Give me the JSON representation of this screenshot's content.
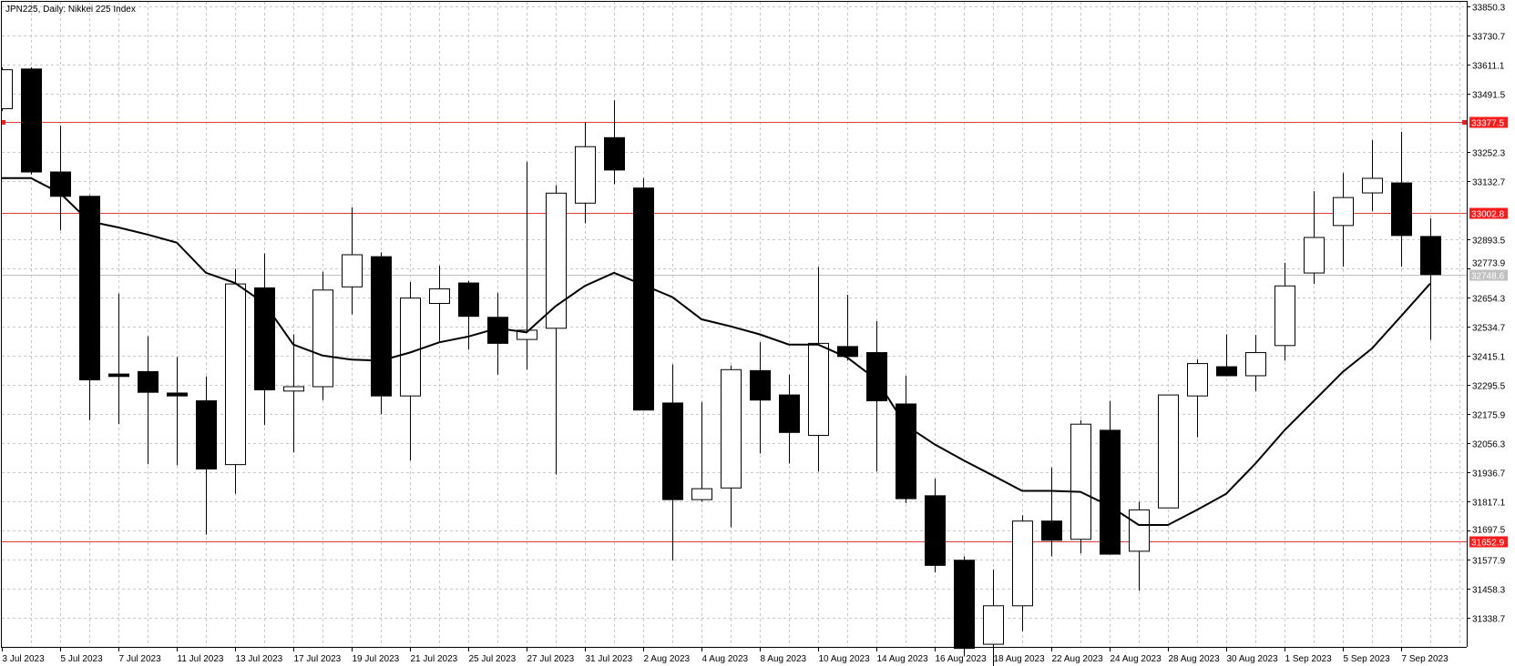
{
  "header": {
    "title": "JPN225, Daily:  Nikkei 225 Index"
  },
  "colors": {
    "bull_body": "#ffffff",
    "bear_body": "#000000",
    "outline": "#000000",
    "level_line": "#e03c3c",
    "level_label_bg": "#ff1a1a",
    "bid_line": "#c0c0c0",
    "grid": "#c8c8c8"
  },
  "chart_data": {
    "type": "candlestick",
    "title": "JPN225, Daily:  Nikkei 225 Index",
    "ylim": [
      31219.1,
      33879
    ],
    "grid": true,
    "y_ticks": [
      "33850.3",
      "33730.7",
      "33611.1",
      "33491.5",
      "33252.3",
      "33132.7",
      "32893.5",
      "32773.9",
      "32654.3",
      "32534.7",
      "32415.1",
      "32295.5",
      "32175.9",
      "32056.3",
      "31936.7",
      "31817.1",
      "31697.5",
      "31577.9",
      "31458.3",
      "31338.7"
    ],
    "x_tick_labels": [
      "3 Jul 2023",
      "5 Jul 2023",
      "7 Jul 2023",
      "11 Jul 2023",
      "13 Jul 2023",
      "17 Jul 2023",
      "19 Jul 2023",
      "21 Jul 2023",
      "25 Jul 2023",
      "27 Jul 2023",
      "31 Jul 2023",
      "2 Aug 2023",
      "4 Aug 2023",
      "8 Aug 2023",
      "10 Aug 2023",
      "14 Aug 2023",
      "16 Aug 2023",
      "18 Aug 2023",
      "22 Aug 2023",
      "24 Aug 2023",
      "28 Aug 2023",
      "30 Aug 2023",
      "1 Sep 2023",
      "5 Sep 2023",
      "7 Sep 2023"
    ],
    "dates": [
      "3 Jul",
      "4 Jul",
      "5 Jul",
      "6 Jul",
      "7 Jul",
      "10 Jul",
      "11 Jul",
      "12 Jul",
      "13 Jul",
      "14 Jul",
      "17 Jul",
      "18 Jul",
      "19 Jul",
      "20 Jul",
      "21 Jul",
      "24 Jul",
      "25 Jul",
      "26 Jul",
      "27 Jul",
      "28 Jul",
      "31 Jul",
      "1 Aug",
      "2 Aug",
      "3 Aug",
      "4 Aug",
      "7 Aug",
      "8 Aug",
      "9 Aug",
      "10 Aug",
      "11 Aug",
      "14 Aug",
      "15 Aug",
      "16 Aug",
      "17 Aug",
      "18 Aug",
      "21 Aug",
      "22 Aug",
      "23 Aug",
      "24 Aug",
      "25 Aug",
      "28 Aug",
      "29 Aug",
      "30 Aug",
      "31 Aug",
      "1 Sep",
      "4 Sep",
      "5 Sep",
      "6 Sep",
      "7 Sep",
      "8 Sep"
    ],
    "ohlc": [
      [
        33430,
        33600,
        33420,
        33590
      ],
      [
        33593,
        33600,
        33160,
        33170
      ],
      [
        33170,
        33360,
        32930,
        33070
      ],
      [
        33070,
        33075,
        32150,
        32316
      ],
      [
        32340,
        32670,
        32135,
        32330
      ],
      [
        32350,
        32495,
        31970,
        32265
      ],
      [
        32262,
        32410,
        31965,
        32250
      ],
      [
        32230,
        32330,
        31680,
        31950
      ],
      [
        31968,
        32772,
        31848,
        32710
      ],
      [
        32694,
        32835,
        32130,
        32275
      ],
      [
        32270,
        32503,
        32018,
        32288
      ],
      [
        32288,
        32760,
        32233,
        32685
      ],
      [
        32698,
        33025,
        32585,
        32830
      ],
      [
        32822,
        32840,
        32175,
        32250
      ],
      [
        32250,
        32718,
        31985,
        32652
      ],
      [
        32630,
        32785,
        32474,
        32690
      ],
      [
        32714,
        32722,
        32440,
        32577
      ],
      [
        32573,
        32673,
        32337,
        32466
      ],
      [
        32482,
        33212,
        32358,
        32520
      ],
      [
        32528,
        33116,
        31927,
        33083
      ],
      [
        33042,
        33373,
        32959,
        33274
      ],
      [
        33311,
        33465,
        33120,
        33178
      ],
      [
        33104,
        33145,
        32192,
        32192
      ],
      [
        32221,
        32379,
        31574,
        31824
      ],
      [
        31824,
        32225,
        31815,
        31869
      ],
      [
        31872,
        32375,
        31711,
        32358
      ],
      [
        32354,
        32470,
        32014,
        32233
      ],
      [
        32254,
        32337,
        31972,
        32100
      ],
      [
        32088,
        32780,
        31940,
        32466
      ],
      [
        32453,
        32665,
        32395,
        32412
      ],
      [
        32428,
        32557,
        31940,
        32230
      ],
      [
        32217,
        32333,
        31810,
        31828
      ],
      [
        31840,
        31910,
        31525,
        31554
      ],
      [
        31575,
        31591,
        31180,
        31213
      ],
      [
        31230,
        31537,
        31123,
        31388
      ],
      [
        31388,
        31760,
        31284,
        31736
      ],
      [
        31736,
        31956,
        31591,
        31657
      ],
      [
        31661,
        32150,
        31603,
        32134
      ],
      [
        32109,
        32229,
        31600,
        31600
      ],
      [
        31612,
        31815,
        31450,
        31782
      ],
      [
        31790,
        32254,
        31790,
        32254
      ],
      [
        32250,
        32400,
        32080,
        32383
      ],
      [
        32370,
        32503,
        32330,
        32333
      ],
      [
        32333,
        32500,
        32270,
        32428
      ],
      [
        32457,
        32797,
        32395,
        32702
      ],
      [
        32755,
        33091,
        32710,
        32901
      ],
      [
        32950,
        33166,
        32781,
        33065
      ],
      [
        33084,
        33301,
        33009,
        33144
      ],
      [
        33125,
        33335,
        32781,
        32909
      ],
      [
        32905,
        32980,
        32480,
        32748.6
      ]
    ],
    "moving_average": [
      33145,
      33145,
      33083,
      32967,
      32942,
      32913,
      32880,
      32756,
      32714,
      32631,
      32461,
      32416,
      32399,
      32395,
      32428,
      32470,
      32494,
      32528,
      32511,
      32619,
      32702,
      32756,
      32706,
      32656,
      32565,
      32536,
      32503,
      32461,
      32461,
      32408,
      32317,
      32130,
      32051,
      31985,
      31923,
      31860,
      31860,
      31856,
      31798,
      31720,
      31720,
      31782,
      31848,
      31972,
      32109,
      32229,
      32349,
      32445,
      32578,
      32712
    ],
    "levels": [
      {
        "value": 33377.5,
        "label": "33377.5",
        "kind": "red"
      },
      {
        "value": 33002.8,
        "label": "33002.8",
        "kind": "red"
      },
      {
        "value": 31652.9,
        "label": "31652.9",
        "kind": "red"
      },
      {
        "value": 32748.6,
        "label": "32748.6",
        "kind": "bid"
      }
    ]
  }
}
